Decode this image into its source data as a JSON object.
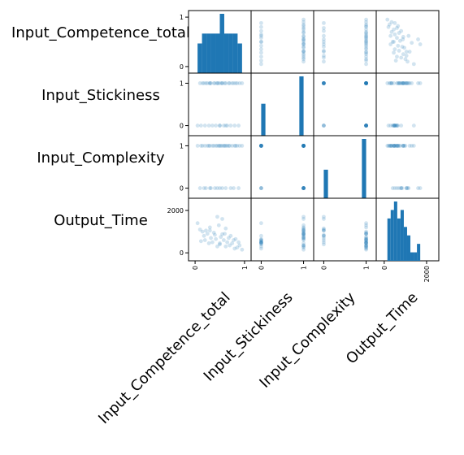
{
  "colors": {
    "bar": "#1f77b4",
    "point": "#1f77b4",
    "axis": "#000000",
    "background": "#ffffff"
  },
  "chart_data": {
    "type": "scatter",
    "variables": [
      "Input_Competence_total",
      "Input_Stickiness",
      "Input_Complexity",
      "Output_Time"
    ],
    "ranges": [
      [
        -0.1,
        1.1
      ],
      [
        -0.2,
        1.2
      ],
      [
        -0.2,
        1.2
      ],
      [
        -300,
        2500
      ]
    ],
    "ticks": [
      [
        {
          "v": 0,
          "t": "0"
        },
        {
          "v": 1,
          "t": "1"
        }
      ],
      [
        {
          "v": 0,
          "t": "0"
        },
        {
          "v": 1,
          "t": "1"
        }
      ],
      [
        {
          "v": 0,
          "t": "0"
        },
        {
          "v": 1,
          "t": "1"
        }
      ],
      [
        {
          "v": 0,
          "t": "0"
        },
        {
          "v": 2000,
          "t": "2000"
        }
      ]
    ],
    "grid": false,
    "legend": "none",
    "point_alpha": 0.2,
    "data": {
      "Input_Competence_total": [
        0.05,
        0.1,
        0.12,
        0.15,
        0.18,
        0.2,
        0.22,
        0.25,
        0.28,
        0.3,
        0.32,
        0.35,
        0.38,
        0.4,
        0.42,
        0.45,
        0.48,
        0.5,
        0.52,
        0.55,
        0.58,
        0.6,
        0.62,
        0.65,
        0.68,
        0.7,
        0.72,
        0.75,
        0.78,
        0.8,
        0.82,
        0.85,
        0.88,
        0.9,
        0.95,
        0.3,
        0.5,
        0.55,
        0.45,
        0.62
      ],
      "Input_Stickiness": [
        0,
        1,
        0,
        1,
        1,
        0,
        1,
        1,
        0,
        1,
        1,
        0,
        1,
        1,
        0,
        1,
        1,
        0,
        1,
        1,
        0,
        1,
        1,
        0,
        1,
        1,
        0,
        1,
        1,
        0,
        1,
        1,
        0,
        1,
        1,
        1,
        0,
        1,
        1,
        0
      ],
      "Input_Complexity": [
        1,
        0,
        1,
        1,
        0,
        1,
        0,
        1,
        1,
        1,
        0,
        1,
        1,
        0,
        1,
        1,
        1,
        0,
        1,
        0,
        1,
        1,
        0,
        1,
        1,
        1,
        0,
        1,
        0,
        1,
        1,
        1,
        0,
        1,
        1,
        0,
        1,
        1,
        0,
        1
      ],
      "Output_Time": [
        1400,
        1100,
        550,
        1000,
        800,
        600,
        1050,
        900,
        450,
        1200,
        700,
        500,
        950,
        850,
        650,
        300,
        1300,
        400,
        750,
        1600,
        600,
        900,
        1150,
        500,
        700,
        350,
        800,
        450,
        600,
        200,
        650,
        250,
        500,
        350,
        150,
        1050,
        450,
        880,
        1700,
        300
      ]
    }
  }
}
